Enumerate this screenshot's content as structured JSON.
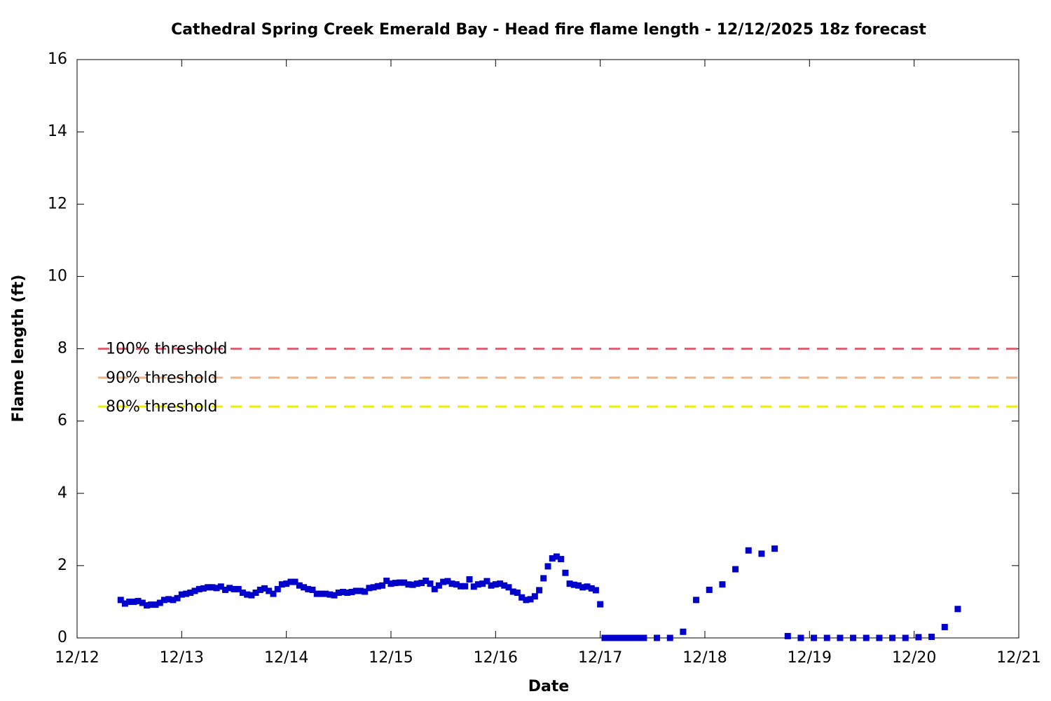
{
  "chart_data": {
    "type": "scatter",
    "title": "Cathedral Spring Creek Emerald Bay - Head fire flame length - 12/12/2025 18z forecast",
    "x_label": "Date",
    "y_label": "Flame length (ft)",
    "xlim": [
      0,
      9
    ],
    "xticks": [
      {
        "value": 0,
        "label": "12/12"
      },
      {
        "value": 1,
        "label": "12/13"
      },
      {
        "value": 2,
        "label": "12/14"
      },
      {
        "value": 3,
        "label": "12/15"
      },
      {
        "value": 4,
        "label": "12/16"
      },
      {
        "value": 5,
        "label": "12/17"
      },
      {
        "value": 6,
        "label": "12/18"
      },
      {
        "value": 7,
        "label": "12/19"
      },
      {
        "value": 8,
        "label": "12/20"
      },
      {
        "value": 9,
        "label": "12/21"
      }
    ],
    "ylim": [
      0,
      16
    ],
    "yticks": [
      0,
      2,
      4,
      6,
      8,
      10,
      12,
      14,
      16
    ],
    "grid": false,
    "thresholds": [
      {
        "name": "100% threshold",
        "value": 8,
        "color": "#dd6477"
      },
      {
        "name": "90% threshold",
        "value": 7.2,
        "color": "#f5b27c"
      },
      {
        "name": "80% threshold",
        "value": 6.4,
        "color": "#eeee00"
      }
    ],
    "series": [
      {
        "color": "#0000cc",
        "x": [
          0.417,
          0.458,
          0.5,
          0.542,
          0.583,
          0.625,
          0.667,
          0.708,
          0.75,
          0.792,
          0.833,
          0.875,
          0.917,
          0.958,
          1,
          1.042,
          1.083,
          1.125,
          1.167,
          1.208,
          1.25,
          1.292,
          1.333,
          1.375,
          1.417,
          1.458,
          1.5,
          1.542,
          1.583,
          1.625,
          1.667,
          1.708,
          1.75,
          1.792,
          1.833,
          1.875,
          1.917,
          1.958,
          2,
          2.042,
          2.083,
          2.125,
          2.167,
          2.208,
          2.25,
          2.292,
          2.333,
          2.375,
          2.417,
          2.458,
          2.5,
          2.542,
          2.583,
          2.625,
          2.667,
          2.708,
          2.75,
          2.792,
          2.833,
          2.875,
          2.917,
          2.958,
          3,
          3.042,
          3.083,
          3.125,
          3.167,
          3.208,
          3.25,
          3.292,
          3.333,
          3.375,
          3.417,
          3.458,
          3.5,
          3.542,
          3.583,
          3.625,
          3.667,
          3.708,
          3.75,
          3.792,
          3.833,
          3.875,
          3.917,
          3.958,
          4,
          4.042,
          4.083,
          4.125,
          4.167,
          4.208,
          4.25,
          4.292,
          4.333,
          4.375,
          4.417,
          4.458,
          4.5,
          4.542,
          4.583,
          4.625,
          4.667,
          4.708,
          4.75,
          4.792,
          4.833,
          4.875,
          4.917,
          4.958,
          5,
          5.042,
          5.083,
          5.125,
          5.167,
          5.208,
          5.25,
          5.292,
          5.333,
          5.375,
          5.417,
          5.542,
          5.667,
          5.792,
          5.917,
          6.042,
          6.167,
          6.292,
          6.417,
          6.542,
          6.667,
          6.792,
          6.917,
          7.042,
          7.167,
          7.292,
          7.417,
          7.542,
          7.667,
          7.792,
          7.917,
          8.042,
          8.167,
          8.292,
          8.417
        ],
        "values": [
          1.05,
          0.95,
          1.0,
          1.0,
          1.02,
          0.97,
          0.9,
          0.92,
          0.92,
          0.97,
          1.05,
          1.07,
          1.05,
          1.1,
          1.2,
          1.22,
          1.25,
          1.3,
          1.35,
          1.37,
          1.4,
          1.4,
          1.38,
          1.42,
          1.33,
          1.38,
          1.35,
          1.35,
          1.25,
          1.2,
          1.18,
          1.25,
          1.33,
          1.37,
          1.3,
          1.22,
          1.35,
          1.48,
          1.5,
          1.55,
          1.55,
          1.45,
          1.4,
          1.35,
          1.33,
          1.22,
          1.22,
          1.22,
          1.2,
          1.18,
          1.25,
          1.27,
          1.25,
          1.27,
          1.3,
          1.3,
          1.28,
          1.38,
          1.4,
          1.43,
          1.45,
          1.58,
          1.5,
          1.52,
          1.53,
          1.53,
          1.48,
          1.47,
          1.5,
          1.52,
          1.58,
          1.5,
          1.35,
          1.45,
          1.55,
          1.57,
          1.5,
          1.48,
          1.43,
          1.43,
          1.62,
          1.42,
          1.48,
          1.5,
          1.57,
          1.45,
          1.48,
          1.5,
          1.45,
          1.4,
          1.28,
          1.25,
          1.12,
          1.05,
          1.07,
          1.15,
          1.32,
          1.65,
          1.98,
          2.2,
          2.25,
          2.18,
          1.8,
          1.5,
          1.47,
          1.45,
          1.4,
          1.42,
          1.37,
          1.32,
          0.93,
          0,
          0,
          0,
          0,
          0,
          0,
          0,
          0,
          0,
          0,
          0,
          0,
          0.17,
          1.05,
          1.33,
          1.48,
          1.9,
          2.42,
          2.33,
          2.47,
          0.05,
          0,
          0,
          0,
          0,
          0,
          0,
          0,
          0,
          0,
          0.02,
          0.03,
          0.3,
          0.8
        ]
      }
    ]
  }
}
